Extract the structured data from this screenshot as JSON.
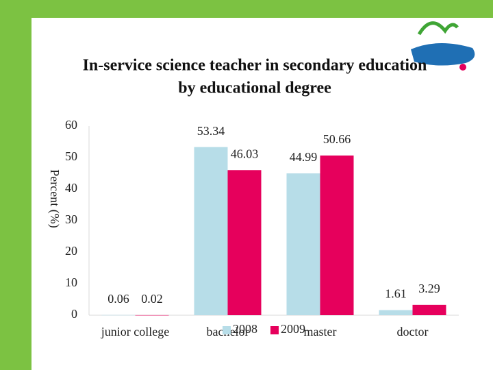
{
  "chart_data": {
    "type": "bar",
    "title": [
      "In-service science teacher in secondary education",
      "by educational degree"
    ],
    "y_label": "Percent (%)",
    "categories": [
      "junior college",
      "bachelor",
      "master",
      "doctor"
    ],
    "series": [
      {
        "name": "2008",
        "color": "#b7dde8",
        "values": [
          0.06,
          53.34,
          44.99,
          1.61
        ]
      },
      {
        "name": "2009",
        "color": "#e6005c",
        "values": [
          0.02,
          46.03,
          50.66,
          3.29
        ]
      }
    ],
    "ylim": [
      0,
      60
    ],
    "yticks": [
      0,
      10,
      20,
      30,
      40,
      50,
      60
    ],
    "grid": false
  }
}
